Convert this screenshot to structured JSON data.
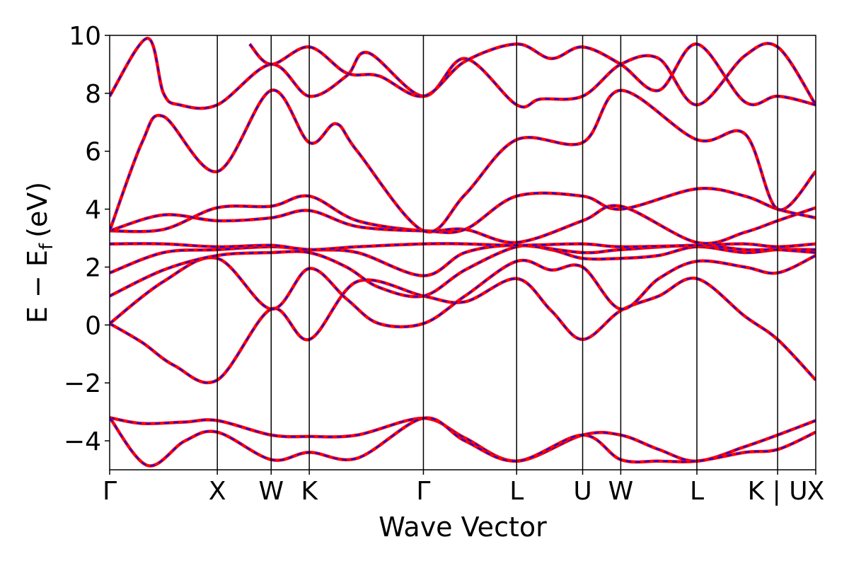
{
  "chart_data": {
    "type": "line",
    "xlabel": "Wave Vector",
    "ylabel": "E − E",
    "ylabel_subscript": "f",
    "ylabel_unit": "(eV)",
    "ylim": [
      -5,
      10
    ],
    "yticks": [
      -4,
      -2,
      0,
      2,
      4,
      6,
      8,
      10
    ],
    "grid": false,
    "x_ticks": [
      {
        "label": "Γ",
        "pos": 0.0
      },
      {
        "label": "X",
        "pos": 1.0
      },
      {
        "label": "W",
        "pos": 1.5
      },
      {
        "label": "K",
        "pos": 1.854
      },
      {
        "label": "Γ",
        "pos": 2.914
      },
      {
        "label": "L",
        "pos": 3.78
      },
      {
        "label": "U",
        "pos": 4.393
      },
      {
        "label": "W",
        "pos": 4.747
      },
      {
        "label": "L",
        "pos": 5.454
      },
      {
        "label": "K | U",
        "pos": 6.204
      },
      {
        "label": "X",
        "pos": 6.558
      }
    ],
    "styles": {
      "primary_color": "#ff0000",
      "secondary_color": "#0000ff",
      "secondary_dash": "dashed"
    },
    "series": [
      {
        "x": [
          0,
          0.3,
          0.7,
          1.0,
          1.5,
          1.854,
          2.3,
          2.914,
          3.3,
          3.78,
          4.393,
          4.747,
          5.1,
          5.454,
          5.9,
          6.204,
          6.558
        ],
        "values": [
          -3.2,
          -3.4,
          -3.35,
          -3.3,
          -3.8,
          -3.85,
          -3.8,
          -3.22,
          -3.9,
          -4.7,
          -3.8,
          -3.8,
          -4.3,
          -4.7,
          -4.2,
          -3.8,
          -3.3
        ]
      },
      {
        "x": [
          0,
          0.35,
          0.7,
          1.0,
          1.5,
          1.854,
          2.3,
          2.914,
          3.3,
          3.78,
          4.393,
          4.747,
          5.1,
          5.454,
          5.9,
          6.204,
          6.558
        ],
        "values": [
          -3.2,
          -4.85,
          -4.0,
          -3.7,
          -4.65,
          -4.4,
          -4.6,
          -3.22,
          -4.0,
          -4.7,
          -3.8,
          -4.65,
          -4.7,
          -4.7,
          -4.4,
          -4.3,
          -3.7
        ]
      },
      {
        "x": [
          0,
          0.3,
          0.6,
          1.0,
          1.5,
          1.854,
          2.3,
          2.914,
          3.3,
          3.78,
          4.1,
          4.393,
          4.747,
          5.1,
          5.454,
          5.9,
          6.204,
          6.558
        ],
        "values": [
          0.05,
          -0.6,
          -1.4,
          -1.9,
          0.55,
          -0.5,
          1.5,
          1.0,
          0.8,
          1.6,
          0.5,
          -0.5,
          0.5,
          1.0,
          1.6,
          0.3,
          -0.5,
          -1.9
        ]
      },
      {
        "x": [
          0,
          0.5,
          1.0,
          1.5,
          1.854,
          2.2,
          2.5,
          2.914,
          3.3,
          3.78,
          4.1,
          4.393,
          4.747,
          5.1,
          5.454,
          5.9,
          6.204,
          6.558
        ],
        "values": [
          0.05,
          1.5,
          2.3,
          0.55,
          1.95,
          0.9,
          0.05,
          0.05,
          1.0,
          2.2,
          1.9,
          2.0,
          0.55,
          1.6,
          2.2,
          2.0,
          1.8,
          2.4
        ]
      },
      {
        "x": [
          0,
          0.5,
          1.0,
          1.5,
          1.854,
          2.2,
          2.5,
          2.914,
          3.3,
          3.78,
          4.1,
          4.393,
          4.747,
          5.1,
          5.454,
          5.9,
          6.204,
          6.558
        ],
        "values": [
          1.0,
          1.9,
          2.4,
          2.5,
          2.5,
          2.0,
          1.3,
          1.0,
          1.9,
          2.7,
          2.6,
          2.3,
          2.3,
          2.4,
          2.7,
          2.5,
          2.6,
          2.6
        ]
      },
      {
        "x": [
          0,
          0.5,
          1.0,
          1.5,
          1.854,
          2.3,
          2.914,
          3.3,
          3.78,
          4.393,
          4.747,
          5.454,
          5.9,
          6.204,
          6.558
        ],
        "values": [
          1.8,
          2.5,
          2.6,
          2.7,
          2.6,
          2.5,
          1.7,
          2.5,
          2.75,
          2.5,
          2.6,
          2.75,
          2.6,
          2.6,
          2.5
        ]
      },
      {
        "x": [
          0,
          0.5,
          1.0,
          1.5,
          1.854,
          2.3,
          2.914,
          3.3,
          3.78,
          4.393,
          4.747,
          5.454,
          5.9,
          6.204,
          6.558
        ],
        "values": [
          2.8,
          2.8,
          2.7,
          2.75,
          2.6,
          2.7,
          2.8,
          2.8,
          2.75,
          2.8,
          2.7,
          2.75,
          2.8,
          2.7,
          2.8
        ]
      },
      {
        "x": [
          0,
          0.5,
          1.0,
          1.5,
          1.854,
          2.3,
          2.914,
          3.3,
          3.78,
          4.393,
          4.747,
          5.454,
          5.9,
          6.204,
          6.558
        ],
        "values": [
          3.25,
          3.3,
          4.05,
          4.1,
          4.45,
          3.6,
          3.25,
          3.3,
          2.85,
          3.6,
          4.1,
          2.85,
          3.2,
          3.6,
          4.05
        ]
      },
      {
        "x": [
          0,
          0.5,
          1.0,
          1.5,
          1.854,
          2.3,
          2.914,
          3.3,
          3.78,
          4.393,
          4.747,
          5.454,
          5.9,
          6.204,
          6.558
        ],
        "values": [
          3.25,
          3.8,
          3.6,
          3.7,
          3.95,
          3.4,
          3.25,
          3.3,
          4.45,
          4.45,
          4.0,
          4.7,
          4.45,
          4.0,
          3.7
        ]
      },
      {
        "x": [
          0,
          0.3,
          0.5,
          1.0,
          1.5,
          1.854,
          2.1,
          2.3,
          2.914,
          3.3,
          3.78,
          4.393,
          4.747,
          5.454,
          5.9,
          6.204,
          6.558
        ],
        "values": [
          3.25,
          6.3,
          7.2,
          5.3,
          8.1,
          6.3,
          6.95,
          6.0,
          3.25,
          4.5,
          6.4,
          6.3,
          8.1,
          6.4,
          6.6,
          4.0,
          5.3
        ]
      },
      {
        "x": [
          0,
          0.35,
          0.5,
          0.65,
          1.0,
          1.5,
          1.854,
          2.2,
          2.4,
          2.914,
          3.3,
          3.78,
          4.0,
          4.393,
          4.747,
          5.1,
          5.454,
          5.9,
          6.204,
          6.558
        ],
        "values": [
          7.9,
          9.9,
          8.0,
          7.6,
          7.6,
          9.0,
          7.9,
          8.6,
          9.4,
          7.9,
          9.2,
          7.6,
          7.8,
          7.9,
          9.0,
          9.2,
          7.6,
          9.3,
          9.6,
          7.6
        ]
      },
      {
        "x": [
          1.3,
          1.5,
          1.854,
          2.2,
          2.5,
          2.914,
          3.3,
          3.78,
          4.1,
          4.393,
          4.747,
          5.1,
          5.454,
          5.9,
          6.204,
          6.558
        ],
        "values": [
          9.7,
          9.0,
          9.6,
          8.7,
          8.6,
          7.9,
          9.1,
          9.7,
          9.2,
          9.6,
          9.0,
          8.1,
          9.7,
          7.7,
          7.9,
          7.6
        ]
      }
    ]
  }
}
